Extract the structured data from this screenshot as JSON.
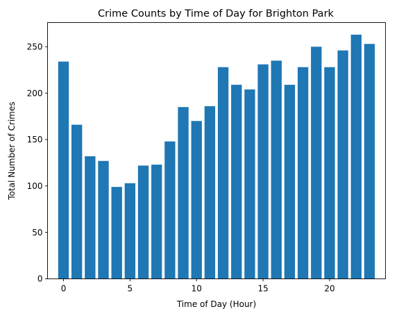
{
  "colors": {
    "bar": "#1f77b4",
    "axes": "#000000",
    "background": "#ffffff"
  },
  "chart_data": {
    "type": "bar",
    "title": "Crime Counts by Time of Day for Brighton Park",
    "xlabel": "Time of Day (Hour)",
    "ylabel": "Total Number of Crimes",
    "x": [
      0,
      1,
      2,
      3,
      4,
      5,
      6,
      7,
      8,
      9,
      10,
      11,
      12,
      13,
      14,
      15,
      16,
      17,
      18,
      19,
      20,
      21,
      22,
      23
    ],
    "values": [
      234,
      166,
      132,
      127,
      99,
      103,
      122,
      123,
      148,
      185,
      170,
      186,
      228,
      209,
      204,
      231,
      235,
      209,
      228,
      250,
      228,
      246,
      263,
      253
    ],
    "xlim": [
      -1.2,
      24.2
    ],
    "ylim": [
      0,
      276
    ],
    "xticks": [
      0,
      5,
      10,
      15,
      20
    ],
    "yticks": [
      0,
      50,
      100,
      150,
      200,
      250
    ],
    "grid": false,
    "legend": "none"
  }
}
